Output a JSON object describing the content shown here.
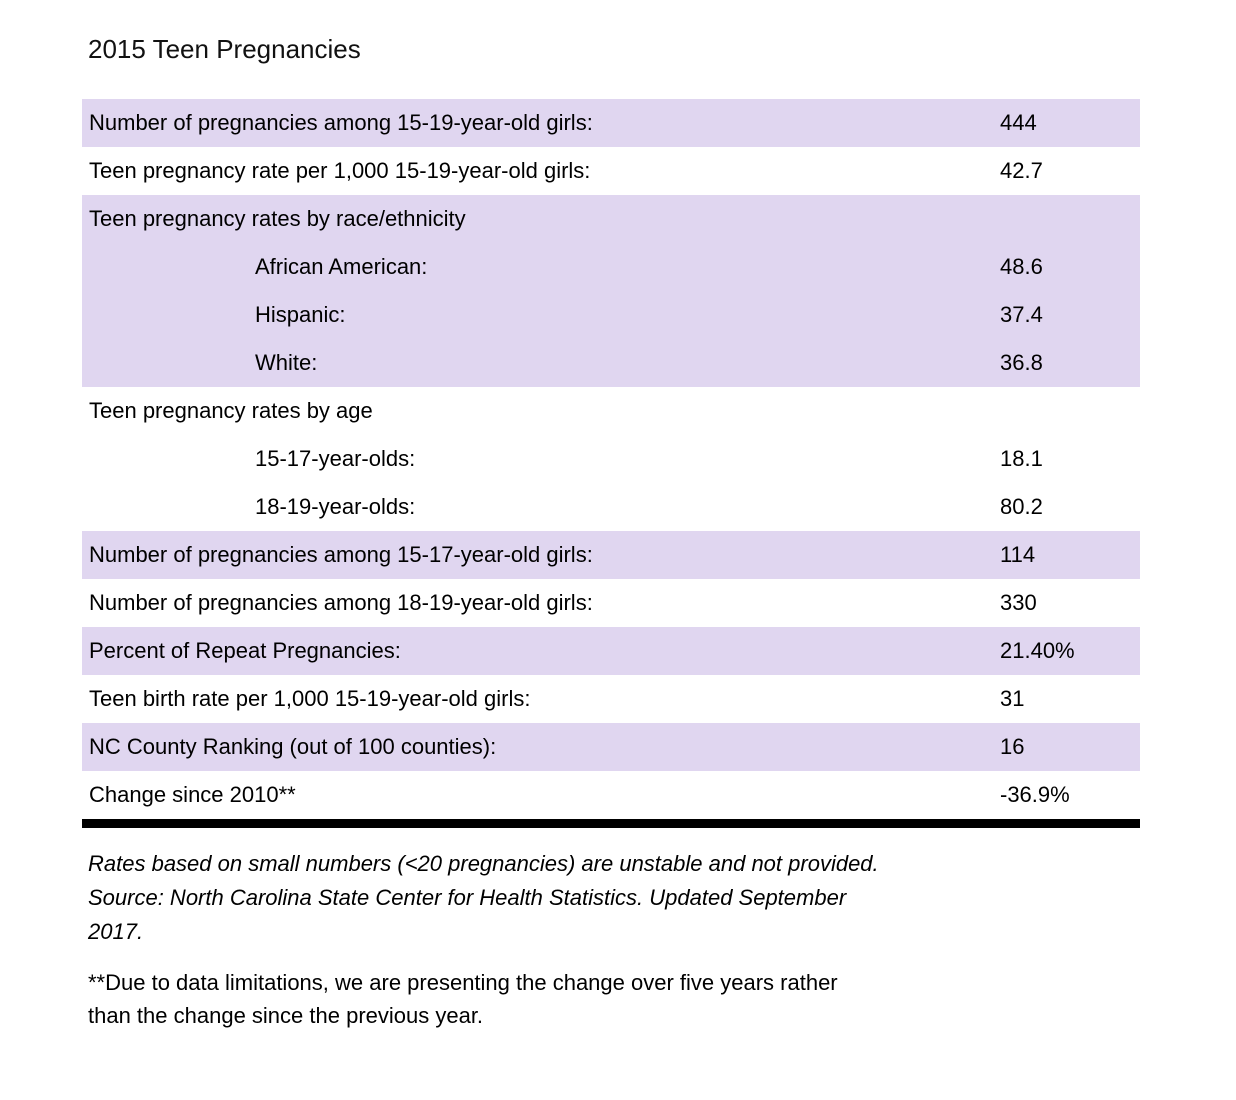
{
  "title": "2015 Teen Pregnancies",
  "colors": {
    "row_shaded": "#e0d6f0",
    "row_plain": "#ffffff",
    "divider": "#000000",
    "text": "#000000"
  },
  "table": {
    "rows": [
      {
        "label": "Number of pregnancies among 15-19-year-old girls:",
        "value": "444",
        "shaded": true,
        "indent": false
      },
      {
        "label": "Teen pregnancy rate per 1,000 15-19-year-old girls:",
        "value": "42.7",
        "shaded": false,
        "indent": false
      },
      {
        "label": "Teen pregnancy rates by race/ethnicity",
        "value": "",
        "shaded": true,
        "indent": false
      },
      {
        "label": "African American:",
        "value": "48.6",
        "shaded": true,
        "indent": true
      },
      {
        "label": "Hispanic:",
        "value": "37.4",
        "shaded": true,
        "indent": true
      },
      {
        "label": "White:",
        "value": "36.8",
        "shaded": true,
        "indent": true
      },
      {
        "label": "Teen pregnancy rates by age",
        "value": "",
        "shaded": false,
        "indent": false
      },
      {
        "label": "15-17-year-olds:",
        "value": "18.1",
        "shaded": false,
        "indent": true
      },
      {
        "label": "18-19-year-olds:",
        "value": "80.2",
        "shaded": false,
        "indent": true
      },
      {
        "label": "Number of pregnancies among 15-17-year-old girls:",
        "value": "114",
        "shaded": true,
        "indent": false
      },
      {
        "label": "Number of pregnancies among 18-19-year-old girls:",
        "value": "330",
        "shaded": false,
        "indent": false
      },
      {
        "label": "Percent of Repeat Pregnancies:",
        "value": "21.40%",
        "shaded": true,
        "indent": false
      },
      {
        "label": "Teen birth rate per 1,000 15-19-year-old girls:",
        "value": "31",
        "shaded": false,
        "indent": false
      },
      {
        "label": "NC County Ranking (out of 100 counties):",
        "value": "16",
        "shaded": true,
        "indent": false
      },
      {
        "label": "Change since 2010**",
        "value": "-36.9%",
        "shaded": false,
        "indent": false
      }
    ]
  },
  "footnotes": {
    "source_note": "Rates based on small numbers (<20 pregnancies) are unstable and not provided.\nSource: North Carolina State Center for Health Statistics. Updated September\n2017.",
    "change_note": "**Due to data limitations, we are presenting the change over five years rather\nthan the change since the previous year."
  }
}
